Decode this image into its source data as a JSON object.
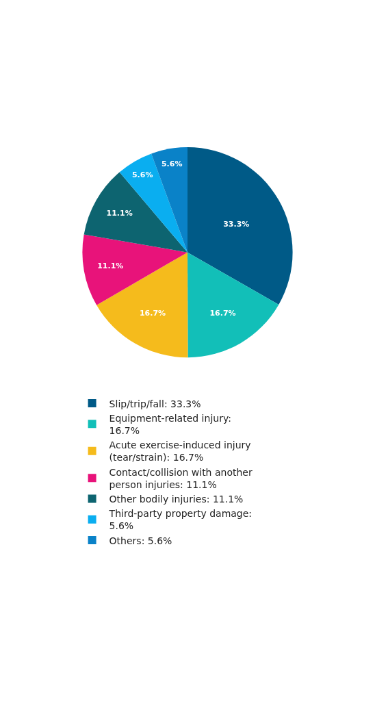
{
  "chart_data": {
    "type": "pie",
    "categories": [
      "Slip/trip/fall",
      "Equipment-related injury",
      "Acute exercise-induced injury (tear/strain)",
      "Contact/collision with another person injuries",
      "Other bodily injuries",
      "Third-party property damage",
      "Others"
    ],
    "values": [
      33.3,
      16.7,
      16.7,
      11.1,
      11.1,
      5.6,
      5.6
    ],
    "value_labels": [
      "33.3%",
      "16.7%",
      "16.7%",
      "11.1%",
      "11.1%",
      "5.6%",
      "5.6%"
    ],
    "colors": [
      "#005a87",
      "#12bfb8",
      "#f5bb1c",
      "#e8137a",
      "#0d6470",
      "#0aaef0",
      "#0a82c8"
    ],
    "legend": "bottom"
  }
}
